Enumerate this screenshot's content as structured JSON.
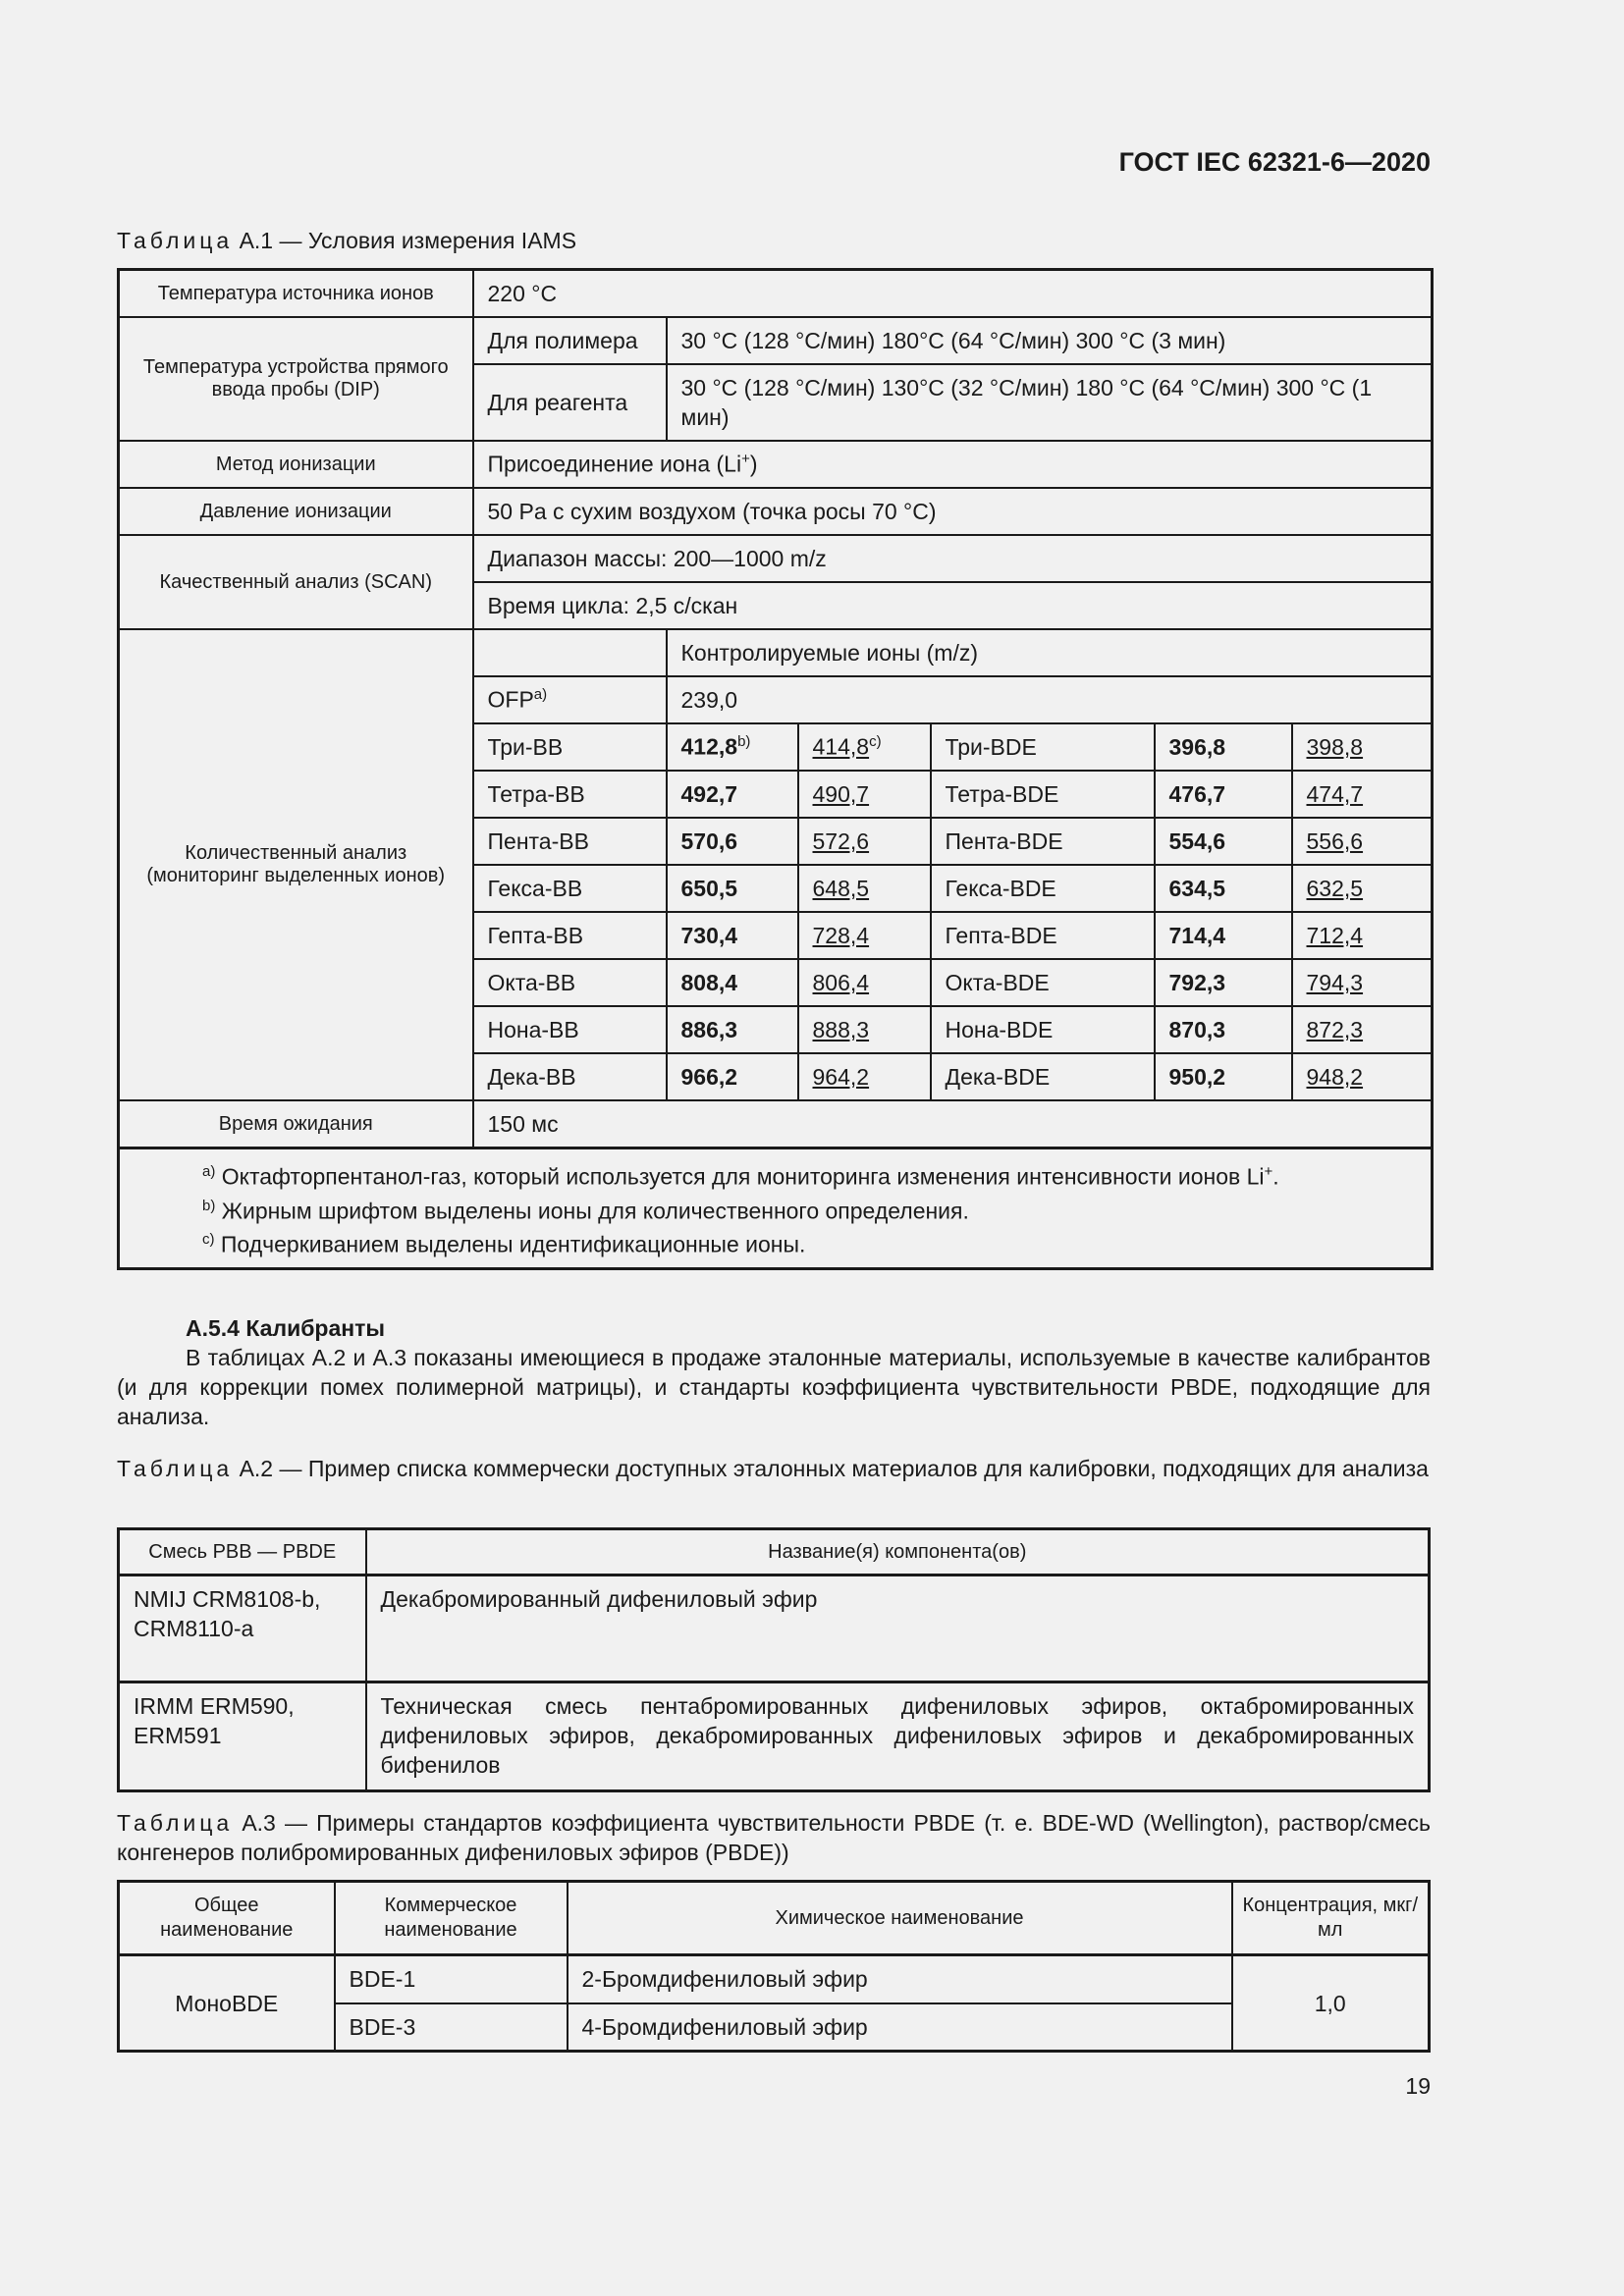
{
  "header": {
    "doc_id": "ГОСТ IEC 62321-6—2020"
  },
  "table_a1": {
    "caption_prefix": "Таблица",
    "caption_rest": "А.1 — Условия измерения IAMS",
    "ion_source_label": "Температура источника ионов",
    "ion_source_value": "220 °C",
    "dip_label": "Температура устройства прямого ввода пробы (DIP)",
    "polymer_label": "Для полимера",
    "polymer_value": "30 °C (128 °C/мин) 180°C (64 °C/мин) 300 °C (3 мин)",
    "reagent_label": "Для реагента",
    "reagent_value": "30 °C (128 °C/мин) 130°C (32 °C/мин) 180 °C (64 °C/мин) 300 °C (1 мин)",
    "ionization_method_label": "Метод ионизации",
    "ionization_method_value": "Присоединение иона (Li",
    "ionization_method_sup": "+",
    "ionization_method_end": ")",
    "pressure_label": "Давление ионизации",
    "pressure_value": "50 Pa с сухим воздухом (точка росы 70 °C)",
    "scan_label": "Качественный анализ (SCAN)",
    "scan_range": "Диапазон массы: 200—1000 m/z",
    "scan_cycle": "Время цикла: 2,5 с/скан",
    "sim_label": "Количественный анализ (мониторинг выделенных ионов)",
    "monitored_header": "Контролируемые ионы (m/z)",
    "ofp_label": "OFP",
    "ofp_sup": "a)",
    "ofp_value": "239,0",
    "rows": [
      {
        "n1": "Три-BB",
        "b1": "412,8",
        "s1": "b)",
        "u1": "414,8",
        "s2": "c)",
        "n2": "Три-BDE",
        "b2": "396,8",
        "u2": "398,8"
      },
      {
        "n1": "Тетра-BB",
        "b1": "492,7",
        "u1": "490,7",
        "n2": "Тетра-BDE",
        "b2": "476,7",
        "u2": "474,7"
      },
      {
        "n1": "Пента-BB",
        "b1": "570,6",
        "u1": "572,6",
        "n2": "Пента-BDE",
        "b2": "554,6",
        "u2": "556,6"
      },
      {
        "n1": "Гекса-BB",
        "b1": "650,5",
        "u1": "648,5",
        "n2": "Гекса-BDE",
        "b2": "634,5",
        "u2": "632,5"
      },
      {
        "n1": "Гепта-BB",
        "b1": "730,4",
        "u1": "728,4",
        "n2": "Гепта-BDE",
        "b2": "714,4",
        "u2": "712,4"
      },
      {
        "n1": "Окта-BB",
        "b1": "808,4",
        "u1": "806,4",
        "n2": "Окта-BDE",
        "b2": "792,3",
        "u2": "794,3"
      },
      {
        "n1": "Нона-BB",
        "b1": "886,3",
        "u1": "888,3",
        "n2": "Нона-BDE",
        "b2": "870,3",
        "u2": "872,3"
      },
      {
        "n1": "Дека-BB",
        "b1": "966,2",
        "u1": "964,2",
        "n2": "Дека-BDE",
        "b2": "950,2",
        "u2": "948,2"
      }
    ],
    "wait_label": "Время ожидания",
    "wait_value": "150 мс",
    "notes": [
      {
        "mark": "a)",
        "text": "Октафторпентанол-газ, который используется для мониторинга изменения интенсивности ионов Li",
        "sup": "+",
        "end": "."
      },
      {
        "mark": "b)",
        "text": "Жирным шрифтом выделены ионы для количественного определения."
      },
      {
        "mark": "c)",
        "text": "Подчеркиванием выделены идентификационные ионы."
      }
    ]
  },
  "section": {
    "heading": "А.5.4 Калибранты",
    "paragraph": "В таблицах А.2 и А.3 показаны имеющиеся в продаже эталонные материалы, используемые в качестве калибрантов (и для коррекции помех полимерной матрицы), и стандарты коэффициента чувствительности PBDE, подходящие для анализа."
  },
  "table_a2": {
    "caption_prefix": "Таблица",
    "caption_rest": "А.2 — Пример списка коммерчески доступных эталонных материалов для калибровки, подходящих для анализа",
    "headers": [
      "Смесь PBB — PBDE",
      "Название(я) компонента(ов)"
    ],
    "rows": [
      {
        "mix": "NMIJ CRM8108-b, CRM8110-a",
        "name": "Декабромированный дифениловый эфир"
      },
      {
        "mix": "IRMM ERM590, ERM591",
        "name": "Техническая смесь пентабромированных дифениловых эфиров, октабромированных дифениловых эфиров, декабромированных дифениловых эфиров и декабромированных бифенилов"
      }
    ]
  },
  "table_a3": {
    "caption_prefix": "Таблица",
    "caption_rest": "А.3 — Примеры стандартов коэффициента чувствительности PBDE (т. е. BDE-WD (Wellington), раствор/смесь конгенеров полибромированных дифениловых эфиров (PBDE))",
    "headers": [
      "Общее наименование",
      "Коммерческое наименование",
      "Химическое наименование",
      "Концентрация, мкг/мл"
    ],
    "group": "МоноBDE",
    "concentration": "1,0",
    "rows": [
      {
        "commercial": "BDE-1",
        "chemical": "2-Бромдифениловый эфир"
      },
      {
        "commercial": "BDE-3",
        "chemical": "4-Бромдифениловый эфир"
      }
    ]
  },
  "page_number": "19"
}
